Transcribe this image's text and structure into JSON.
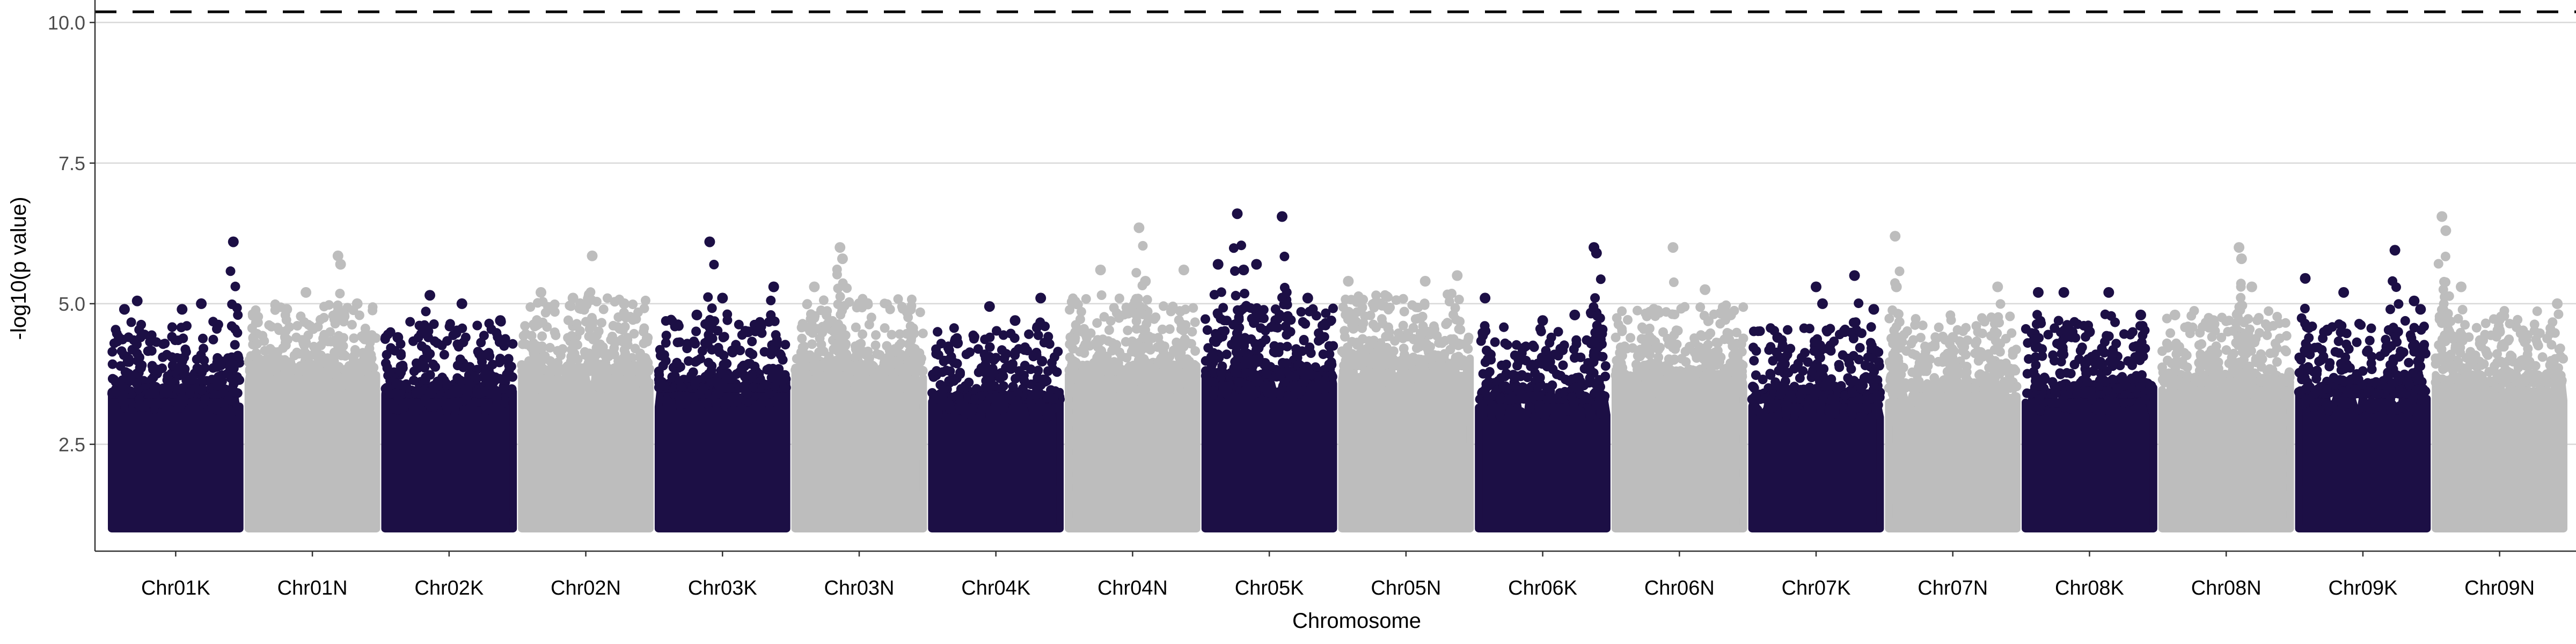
{
  "chart_data": {
    "type": "scatter",
    "subtype": "manhattan",
    "title": "",
    "xlabel": "Chromosome",
    "ylabel": "-log10(p value)",
    "ylim": [
      0.6,
      10.4
    ],
    "yticks": [
      "2.5",
      "5.0",
      "7.5",
      "10.0"
    ],
    "ytick_values": [
      2.5,
      5.0,
      7.5,
      10.0
    ],
    "grid": "horizontal",
    "colors": {
      "dark": "#1c0f45",
      "light": "#bdbdbd"
    },
    "significance_line": {
      "value": 10.4,
      "style": "dashed",
      "color": "#000000"
    },
    "suggestive_line": {
      "value": 5.0,
      "style": "solid",
      "color": "#cccccc"
    },
    "chromosomes": [
      {
        "name": "Chr01K",
        "color": "dark",
        "baseline": 3.3,
        "peaks": [
          [
            0.95,
            6.1
          ],
          [
            0.2,
            5.05
          ],
          [
            0.1,
            4.9
          ],
          [
            0.55,
            4.9
          ],
          [
            0.7,
            5.0
          ]
        ]
      },
      {
        "name": "Chr01N",
        "color": "light",
        "baseline": 3.7,
        "peaks": [
          [
            0.7,
            5.85
          ],
          [
            0.72,
            5.7
          ],
          [
            0.45,
            5.2
          ],
          [
            0.3,
            4.9
          ],
          [
            0.85,
            5.0
          ]
        ]
      },
      {
        "name": "Chr02K",
        "color": "dark",
        "baseline": 3.3,
        "peaks": [
          [
            0.35,
            5.15
          ],
          [
            0.6,
            5.0
          ],
          [
            0.9,
            4.7
          ],
          [
            0.1,
            4.4
          ]
        ]
      },
      {
        "name": "Chr02N",
        "color": "light",
        "baseline": 3.7,
        "peaks": [
          [
            0.55,
            5.85
          ],
          [
            0.15,
            5.2
          ],
          [
            0.4,
            5.1
          ],
          [
            0.8,
            5.0
          ]
        ]
      },
      {
        "name": "Chr03K",
        "color": "dark",
        "baseline": 3.4,
        "peaks": [
          [
            0.4,
            6.1
          ],
          [
            0.5,
            5.1
          ],
          [
            0.9,
            5.3
          ],
          [
            0.3,
            4.8
          ],
          [
            0.7,
            4.5
          ]
        ]
      },
      {
        "name": "Chr03N",
        "color": "light",
        "baseline": 3.7,
        "peaks": [
          [
            0.35,
            6.0
          ],
          [
            0.37,
            5.8
          ],
          [
            0.15,
            5.3
          ],
          [
            0.5,
            5.0
          ],
          [
            0.9,
            4.9
          ]
        ]
      },
      {
        "name": "Chr04K",
        "color": "dark",
        "baseline": 3.2,
        "peaks": [
          [
            0.45,
            4.95
          ],
          [
            0.85,
            5.1
          ],
          [
            0.65,
            4.7
          ],
          [
            0.2,
            4.3
          ]
        ]
      },
      {
        "name": "Chr04N",
        "color": "light",
        "baseline": 3.7,
        "peaks": [
          [
            0.55,
            6.35
          ],
          [
            0.25,
            5.6
          ],
          [
            0.9,
            5.6
          ],
          [
            0.6,
            5.4
          ]
        ]
      },
      {
        "name": "Chr05K",
        "color": "dark",
        "baseline": 3.6,
        "peaks": [
          [
            0.25,
            6.6
          ],
          [
            0.6,
            6.55
          ],
          [
            0.1,
            5.7
          ],
          [
            0.4,
            5.7
          ],
          [
            0.3,
            5.6
          ],
          [
            0.8,
            5.1
          ]
        ]
      },
      {
        "name": "Chr05N",
        "color": "light",
        "baseline": 3.8,
        "peaks": [
          [
            0.05,
            5.4
          ],
          [
            0.65,
            5.4
          ],
          [
            0.9,
            5.5
          ],
          [
            0.3,
            5.0
          ]
        ]
      },
      {
        "name": "Chr06K",
        "color": "dark",
        "baseline": 3.2,
        "peaks": [
          [
            0.9,
            6.0
          ],
          [
            0.92,
            5.9
          ],
          [
            0.05,
            5.1
          ],
          [
            0.5,
            4.7
          ],
          [
            0.75,
            4.8
          ]
        ]
      },
      {
        "name": "Chr06N",
        "color": "light",
        "baseline": 3.6,
        "peaks": [
          [
            0.45,
            6.0
          ],
          [
            0.7,
            5.25
          ],
          [
            0.3,
            4.9
          ],
          [
            0.9,
            4.8
          ]
        ]
      },
      {
        "name": "Chr07K",
        "color": "dark",
        "baseline": 3.2,
        "peaks": [
          [
            0.8,
            5.5
          ],
          [
            0.5,
            5.3
          ],
          [
            0.55,
            5.0
          ],
          [
            0.95,
            4.9
          ],
          [
            0.2,
            4.4
          ]
        ]
      },
      {
        "name": "Chr07N",
        "color": "light",
        "baseline": 3.4,
        "peaks": [
          [
            0.05,
            6.2
          ],
          [
            0.06,
            5.3
          ],
          [
            0.85,
            5.3
          ],
          [
            0.5,
            4.4
          ]
        ]
      },
      {
        "name": "Chr08K",
        "color": "dark",
        "baseline": 3.3,
        "peaks": [
          [
            0.1,
            5.2
          ],
          [
            0.3,
            5.2
          ],
          [
            0.65,
            5.2
          ],
          [
            0.9,
            4.8
          ],
          [
            0.5,
            4.5
          ]
        ]
      },
      {
        "name": "Chr08N",
        "color": "light",
        "baseline": 3.5,
        "peaks": [
          [
            0.6,
            6.0
          ],
          [
            0.62,
            5.8
          ],
          [
            0.7,
            5.3
          ],
          [
            0.1,
            4.8
          ],
          [
            0.4,
            4.7
          ]
        ]
      },
      {
        "name": "Chr09K",
        "color": "dark",
        "baseline": 3.3,
        "peaks": [
          [
            0.75,
            5.95
          ],
          [
            0.05,
            5.45
          ],
          [
            0.35,
            5.2
          ],
          [
            0.95,
            4.9
          ],
          [
            0.9,
            5.05
          ]
        ]
      },
      {
        "name": "Chr09N",
        "color": "light",
        "baseline": 3.5,
        "peaks": [
          [
            0.05,
            6.55
          ],
          [
            0.08,
            6.3
          ],
          [
            0.2,
            5.3
          ],
          [
            0.95,
            5.0
          ],
          [
            0.5,
            4.5
          ]
        ]
      }
    ]
  }
}
